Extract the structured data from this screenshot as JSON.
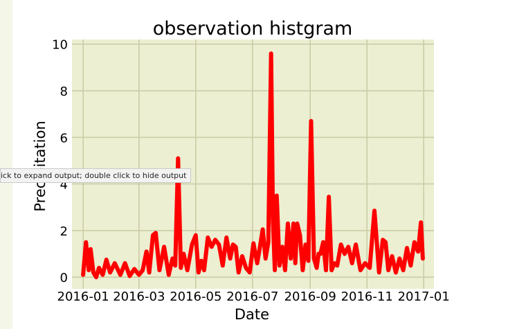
{
  "output_area": {
    "tooltip": "ick to expand output; double click to hide output"
  },
  "chart_data": {
    "type": "line",
    "title": "observation histgram",
    "xlabel": "Date",
    "ylabel": "Precipitation",
    "x_tick_labels": [
      "2016-01",
      "2016-03",
      "2016-05",
      "2016-07",
      "2016-09",
      "2016-11",
      "2017-01"
    ],
    "y_tick_labels": [
      "0",
      "2",
      "4",
      "6",
      "8",
      "10"
    ],
    "xlim": [
      "2015-12-20",
      "2017-01-12"
    ],
    "ylim": [
      -0.5,
      10.2
    ],
    "grid": true,
    "colors": {
      "line": "#ff0000",
      "axes_bg": "#ecefd1",
      "grid": "#cbcca6"
    },
    "series": [
      {
        "x": [
          "2016-01-01",
          "2016-01-04",
          "2016-01-07",
          "2016-01-09",
          "2016-01-12",
          "2016-01-15",
          "2016-01-18",
          "2016-01-22",
          "2016-01-26",
          "2016-01-30",
          "2016-02-04",
          "2016-02-10",
          "2016-02-15",
          "2016-02-20",
          "2016-02-25",
          "2016-03-01",
          "2016-03-05",
          "2016-03-09",
          "2016-03-12",
          "2016-03-16",
          "2016-03-19",
          "2016-03-23",
          "2016-03-28",
          "2016-04-02",
          "2016-04-06",
          "2016-04-09",
          "2016-04-12",
          "2016-04-15",
          "2016-04-18",
          "2016-04-22",
          "2016-04-27",
          "2016-05-01",
          "2016-05-04",
          "2016-05-07",
          "2016-05-10",
          "2016-05-14",
          "2016-05-18",
          "2016-05-22",
          "2016-05-26",
          "2016-05-30",
          "2016-06-03",
          "2016-06-07",
          "2016-06-10",
          "2016-06-13",
          "2016-06-16",
          "2016-06-20",
          "2016-06-24",
          "2016-06-28",
          "2016-07-02",
          "2016-07-06",
          "2016-07-09",
          "2016-07-12",
          "2016-07-15",
          "2016-07-18",
          "2016-07-21",
          "2016-07-23",
          "2016-07-25",
          "2016-07-27",
          "2016-07-30",
          "2016-08-02",
          "2016-08-05",
          "2016-08-08",
          "2016-08-11",
          "2016-08-14",
          "2016-08-16",
          "2016-08-18",
          "2016-08-21",
          "2016-08-24",
          "2016-08-27",
          "2016-08-30",
          "2016-09-02",
          "2016-09-05",
          "2016-09-08",
          "2016-09-10",
          "2016-09-12",
          "2016-09-15",
          "2016-09-18",
          "2016-09-21",
          "2016-09-24",
          "2016-09-27",
          "2016-09-30",
          "2016-10-04",
          "2016-10-08",
          "2016-10-12",
          "2016-10-16",
          "2016-10-20",
          "2016-10-25",
          "2016-10-30",
          "2016-11-04",
          "2016-11-09",
          "2016-11-14",
          "2016-11-18",
          "2016-11-21",
          "2016-11-24",
          "2016-11-28",
          "2016-12-02",
          "2016-12-06",
          "2016-12-10",
          "2016-12-14",
          "2016-12-18",
          "2016-12-22",
          "2016-12-26",
          "2016-12-29",
          "2016-12-31"
        ],
        "y": [
          0.1,
          1.5,
          0.3,
          1.2,
          0.2,
          0.0,
          0.4,
          0.1,
          0.75,
          0.2,
          0.6,
          0.1,
          0.6,
          0.05,
          0.35,
          0.1,
          0.3,
          1.1,
          0.2,
          1.8,
          1.9,
          0.3,
          1.3,
          0.1,
          0.8,
          0.5,
          5.1,
          0.4,
          1.0,
          0.3,
          1.4,
          1.8,
          0.2,
          0.7,
          0.3,
          1.7,
          1.3,
          1.6,
          1.4,
          0.5,
          1.7,
          0.8,
          1.4,
          1.3,
          0.2,
          0.9,
          0.4,
          0.2,
          1.45,
          0.6,
          1.3,
          2.05,
          0.8,
          1.5,
          9.6,
          2.4,
          0.3,
          3.5,
          0.5,
          1.3,
          0.3,
          2.3,
          0.8,
          2.3,
          0.6,
          2.3,
          1.8,
          0.3,
          1.4,
          0.7,
          6.7,
          0.8,
          0.4,
          1.0,
          1.0,
          1.5,
          0.3,
          3.45,
          0.3,
          0.6,
          0.5,
          1.4,
          1.0,
          1.3,
          0.6,
          1.4,
          0.3,
          0.6,
          0.4,
          2.85,
          0.2,
          1.6,
          1.5,
          0.3,
          0.9,
          0.2,
          0.8,
          0.3,
          1.25,
          0.5,
          1.5,
          1.1,
          2.35,
          0.8
        ]
      }
    ]
  }
}
